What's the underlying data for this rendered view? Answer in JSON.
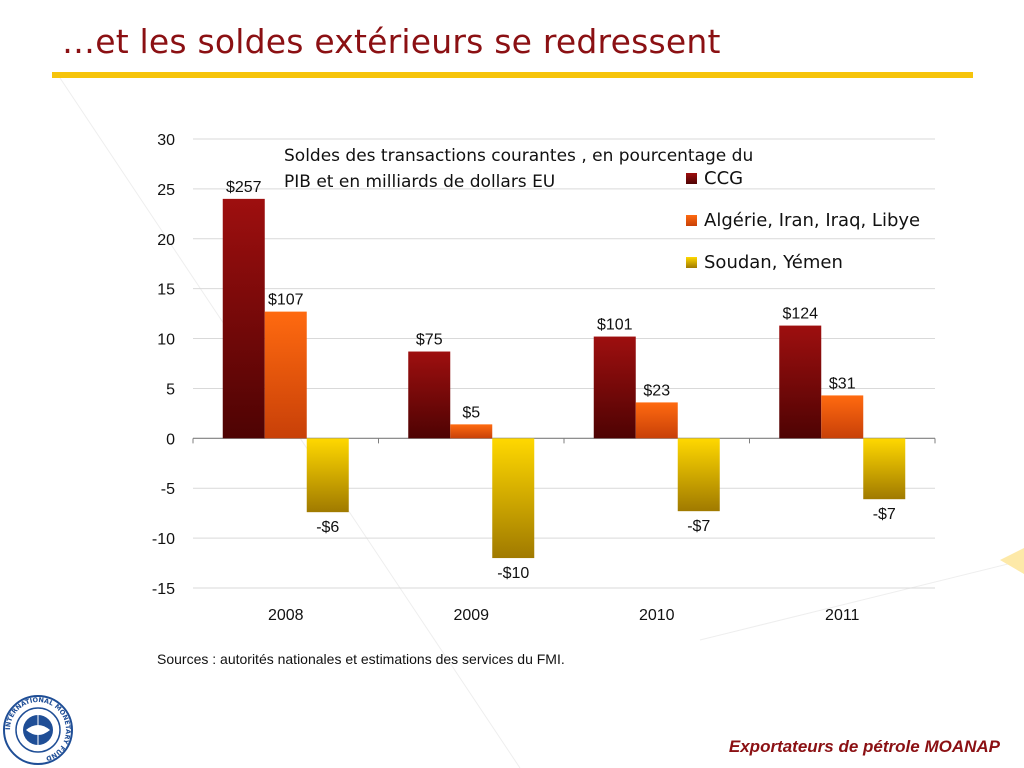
{
  "slide": {
    "title": "…et les soldes extérieurs se redressent",
    "sources": "Sources : autorités nationales et estimations des services du FMI.",
    "footer": "Exportateurs de pétrole MOANAP",
    "logo_text": "INTERNATIONAL MONETARY FUND"
  },
  "colors": {
    "title": "#8b1013",
    "rule": "#f6c40b",
    "ccg": "#8b0a0a",
    "algeria": "#f06010",
    "soudan": "#f0c800"
  },
  "chart_data": {
    "type": "bar",
    "title": "Soldes des transactions courantes , en pourcentage du PIB et en milliards de dollars  EU",
    "title_lines": [
      "Soldes des transactions courantes , en pourcentage du",
      "PIB et en milliards de dollars  EU"
    ],
    "categories": [
      "2008",
      "2009",
      "2010",
      "2011"
    ],
    "ylim": [
      -15,
      30
    ],
    "yticks": [
      30,
      25,
      20,
      15,
      10,
      5,
      0,
      -5,
      -10,
      -15
    ],
    "grid": true,
    "legend_position": "top-right",
    "series": [
      {
        "name": "CCG",
        "values": [
          24.0,
          8.7,
          10.2,
          11.3
        ],
        "labels": [
          "$257",
          "$75",
          "$101",
          "$124"
        ]
      },
      {
        "name": "Algérie, Iran, Iraq, Libye",
        "values": [
          12.7,
          1.4,
          3.6,
          4.3
        ],
        "labels": [
          "$107",
          "$5",
          "$23",
          "$31"
        ]
      },
      {
        "name": "Soudan, Yémen",
        "values": [
          -7.4,
          -12.0,
          -7.3,
          -6.1
        ],
        "labels": [
          "-$6",
          "-$10",
          "-$7",
          "-$7"
        ]
      }
    ]
  }
}
